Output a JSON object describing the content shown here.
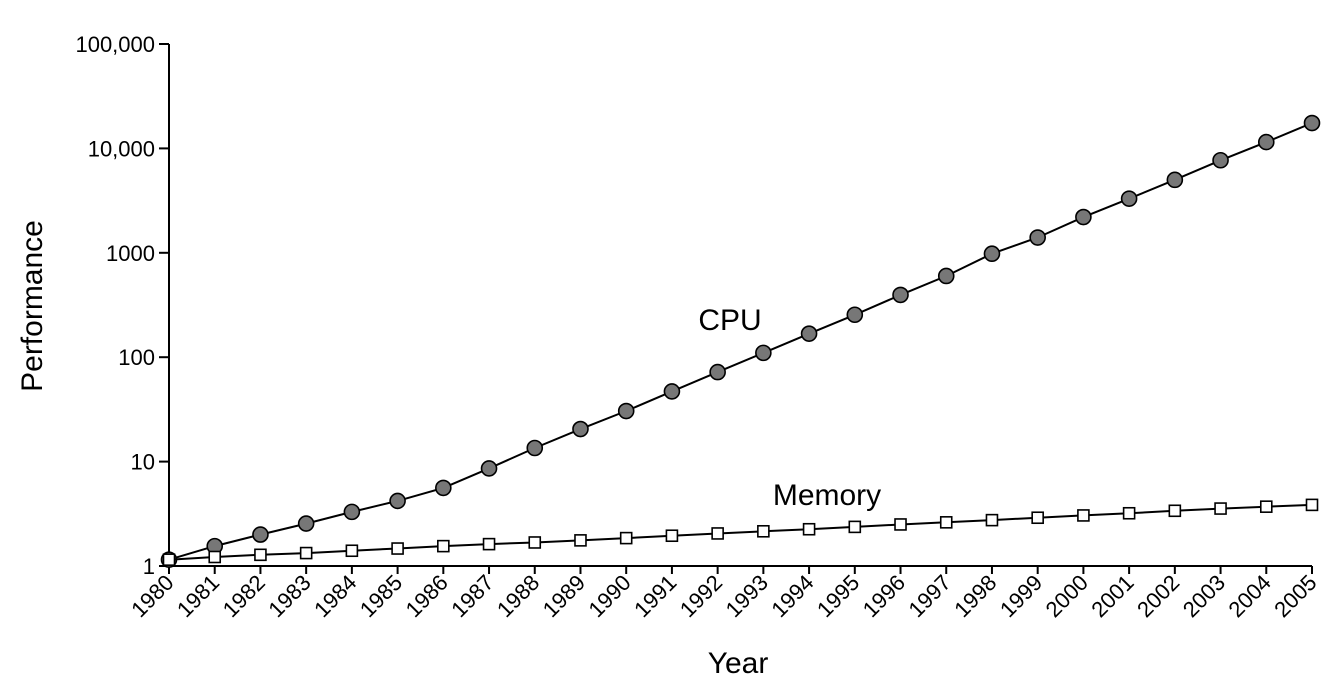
{
  "chart_data": {
    "type": "line",
    "title": "",
    "xlabel": "Year",
    "ylabel": "Performance",
    "yscale": "log",
    "ylim": [
      1,
      100000
    ],
    "y_ticks": [
      {
        "value": 1,
        "label": "1"
      },
      {
        "value": 10,
        "label": "10"
      },
      {
        "value": 100,
        "label": "100"
      },
      {
        "value": 1000,
        "label": "1000"
      },
      {
        "value": 10000,
        "label": "10,000"
      },
      {
        "value": 100000,
        "label": "100,000"
      }
    ],
    "x": [
      "1980",
      "1981",
      "1982",
      "1983",
      "1984",
      "1985",
      "1986",
      "1987",
      "1988",
      "1989",
      "1990",
      "1991",
      "1992",
      "1993",
      "1994",
      "1995",
      "1996",
      "1997",
      "1998",
      "1999",
      "2000",
      "2001",
      "2002",
      "2003",
      "2004",
      "2005"
    ],
    "legend": "none",
    "grid": false,
    "series": [
      {
        "name": "CPU",
        "marker": "circle",
        "marker_color": "#777777",
        "values": [
          1.15,
          1.55,
          2.0,
          2.55,
          3.3,
          4.2,
          5.6,
          8.6,
          13.5,
          20.5,
          30.5,
          47,
          72,
          110,
          168,
          255,
          395,
          600,
          980,
          1400,
          2200,
          3300,
          5000,
          7700,
          11500,
          17500
        ]
      },
      {
        "name": "Memory",
        "marker": "square",
        "marker_color": "#ffffff",
        "values": [
          1.15,
          1.22,
          1.28,
          1.33,
          1.4,
          1.47,
          1.55,
          1.62,
          1.68,
          1.76,
          1.85,
          1.95,
          2.05,
          2.15,
          2.25,
          2.37,
          2.5,
          2.62,
          2.75,
          2.9,
          3.05,
          3.2,
          3.38,
          3.55,
          3.7,
          3.85
        ]
      }
    ]
  }
}
